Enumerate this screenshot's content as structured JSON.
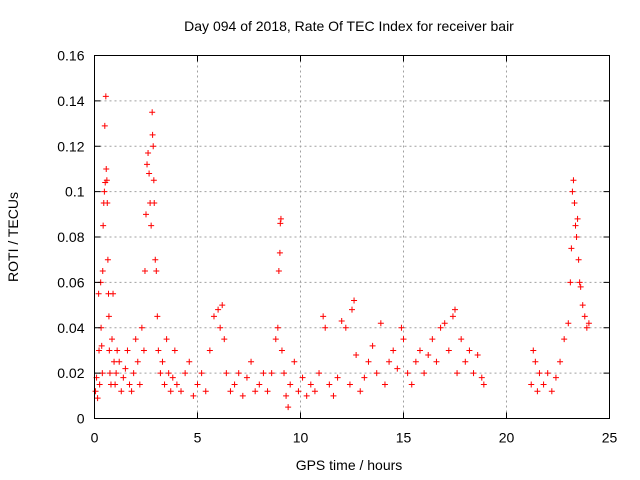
{
  "chart_data": {
    "type": "scatter",
    "title": "Day 094 of 2018, Rate Of TEC Index for receiver bair",
    "xlabel": "GPS time / hours",
    "ylabel": "ROTI / TECUs",
    "xlim": [
      0,
      25
    ],
    "ylim": [
      0,
      0.16
    ],
    "xticks": [
      0,
      5,
      10,
      15,
      20,
      25
    ],
    "xtick_labels": [
      "0",
      "5",
      "10",
      "15",
      "20",
      "25"
    ],
    "yticks": [
      0,
      0.02,
      0.04,
      0.06,
      0.08,
      0.1,
      0.12,
      0.14,
      0.16
    ],
    "ytick_labels": [
      "0",
      "0.02",
      "0.04",
      "0.06",
      "0.08",
      "0.1",
      "0.12",
      "0.14",
      "0.16"
    ],
    "grid": true,
    "marker": "+",
    "color": "#ff0000",
    "series": [
      {
        "points": [
          [
            0.05,
            0.012
          ],
          [
            0.1,
            0.018
          ],
          [
            0.15,
            0.009
          ],
          [
            0.2,
            0.055
          ],
          [
            0.22,
            0.03
          ],
          [
            0.25,
            0.015
          ],
          [
            0.3,
            0.06
          ],
          [
            0.32,
            0.04
          ],
          [
            0.35,
            0.032
          ],
          [
            0.38,
            0.02
          ],
          [
            0.4,
            0.065
          ],
          [
            0.42,
            0.085
          ],
          [
            0.45,
            0.095
          ],
          [
            0.48,
            0.1
          ],
          [
            0.5,
            0.129
          ],
          [
            0.52,
            0.104
          ],
          [
            0.55,
            0.142
          ],
          [
            0.57,
            0.11
          ],
          [
            0.6,
            0.105
          ],
          [
            0.62,
            0.095
          ],
          [
            0.65,
            0.07
          ],
          [
            0.68,
            0.055
          ],
          [
            0.7,
            0.045
          ],
          [
            0.72,
            0.03
          ],
          [
            0.75,
            0.02
          ],
          [
            0.8,
            0.015
          ],
          [
            0.85,
            0.035
          ],
          [
            0.9,
            0.055
          ],
          [
            0.95,
            0.025
          ],
          [
            1.0,
            0.015
          ],
          [
            1.05,
            0.02
          ],
          [
            1.1,
            0.03
          ],
          [
            1.2,
            0.025
          ],
          [
            1.3,
            0.012
          ],
          [
            1.4,
            0.018
          ],
          [
            1.5,
            0.022
          ],
          [
            1.6,
            0.03
          ],
          [
            1.7,
            0.015
          ],
          [
            1.8,
            0.012
          ],
          [
            1.9,
            0.02
          ],
          [
            2.0,
            0.035
          ],
          [
            2.1,
            0.025
          ],
          [
            2.2,
            0.015
          ],
          [
            2.3,
            0.04
          ],
          [
            2.4,
            0.03
          ],
          [
            2.45,
            0.065
          ],
          [
            2.5,
            0.09
          ],
          [
            2.55,
            0.112
          ],
          [
            2.6,
            0.117
          ],
          [
            2.65,
            0.108
          ],
          [
            2.7,
            0.095
          ],
          [
            2.75,
            0.085
          ],
          [
            2.8,
            0.135
          ],
          [
            2.82,
            0.125
          ],
          [
            2.85,
            0.12
          ],
          [
            2.88,
            0.105
          ],
          [
            2.9,
            0.095
          ],
          [
            2.95,
            0.07
          ],
          [
            3.0,
            0.065
          ],
          [
            3.05,
            0.045
          ],
          [
            3.1,
            0.03
          ],
          [
            3.2,
            0.02
          ],
          [
            3.3,
            0.025
          ],
          [
            3.4,
            0.015
          ],
          [
            3.5,
            0.035
          ],
          [
            3.6,
            0.02
          ],
          [
            3.7,
            0.012
          ],
          [
            3.8,
            0.018
          ],
          [
            3.9,
            0.03
          ],
          [
            4.0,
            0.015
          ],
          [
            4.2,
            0.012
          ],
          [
            4.4,
            0.02
          ],
          [
            4.6,
            0.025
          ],
          [
            4.8,
            0.01
          ],
          [
            5.0,
            0.015
          ],
          [
            5.2,
            0.02
          ],
          [
            5.4,
            0.012
          ],
          [
            5.6,
            0.03
          ],
          [
            5.8,
            0.045
          ],
          [
            6.0,
            0.048
          ],
          [
            6.1,
            0.04
          ],
          [
            6.2,
            0.05
          ],
          [
            6.3,
            0.035
          ],
          [
            6.4,
            0.02
          ],
          [
            6.6,
            0.012
          ],
          [
            6.8,
            0.015
          ],
          [
            7.0,
            0.02
          ],
          [
            7.2,
            0.01
          ],
          [
            7.4,
            0.018
          ],
          [
            7.6,
            0.025
          ],
          [
            7.8,
            0.012
          ],
          [
            8.0,
            0.015
          ],
          [
            8.2,
            0.02
          ],
          [
            8.4,
            0.012
          ],
          [
            8.6,
            0.02
          ],
          [
            8.8,
            0.035
          ],
          [
            8.9,
            0.04
          ],
          [
            8.95,
            0.065
          ],
          [
            9.0,
            0.073
          ],
          [
            9.02,
            0.086
          ],
          [
            9.05,
            0.088
          ],
          [
            9.1,
            0.03
          ],
          [
            9.2,
            0.02
          ],
          [
            9.3,
            0.01
          ],
          [
            9.4,
            0.005
          ],
          [
            9.5,
            0.015
          ],
          [
            9.7,
            0.025
          ],
          [
            9.9,
            0.012
          ],
          [
            10.1,
            0.018
          ],
          [
            10.3,
            0.01
          ],
          [
            10.5,
            0.015
          ],
          [
            10.7,
            0.012
          ],
          [
            10.9,
            0.02
          ],
          [
            11.1,
            0.045
          ],
          [
            11.2,
            0.04
          ],
          [
            11.4,
            0.015
          ],
          [
            11.6,
            0.01
          ],
          [
            11.8,
            0.018
          ],
          [
            12.0,
            0.043
          ],
          [
            12.2,
            0.04
          ],
          [
            12.4,
            0.015
          ],
          [
            12.5,
            0.048
          ],
          [
            12.6,
            0.052
          ],
          [
            12.7,
            0.028
          ],
          [
            12.9,
            0.012
          ],
          [
            13.1,
            0.018
          ],
          [
            13.3,
            0.025
          ],
          [
            13.5,
            0.032
          ],
          [
            13.7,
            0.02
          ],
          [
            13.9,
            0.042
          ],
          [
            14.1,
            0.015
          ],
          [
            14.3,
            0.025
          ],
          [
            14.5,
            0.03
          ],
          [
            14.7,
            0.022
          ],
          [
            14.9,
            0.04
          ],
          [
            15.0,
            0.035
          ],
          [
            15.2,
            0.02
          ],
          [
            15.4,
            0.015
          ],
          [
            15.6,
            0.025
          ],
          [
            15.8,
            0.03
          ],
          [
            16.0,
            0.02
          ],
          [
            16.2,
            0.028
          ],
          [
            16.4,
            0.035
          ],
          [
            16.6,
            0.025
          ],
          [
            16.8,
            0.04
          ],
          [
            17.0,
            0.042
          ],
          [
            17.2,
            0.03
          ],
          [
            17.4,
            0.045
          ],
          [
            17.5,
            0.048
          ],
          [
            17.6,
            0.02
          ],
          [
            17.8,
            0.035
          ],
          [
            18.0,
            0.025
          ],
          [
            18.2,
            0.03
          ],
          [
            18.4,
            0.02
          ],
          [
            18.6,
            0.028
          ],
          [
            18.8,
            0.018
          ],
          [
            18.9,
            0.015
          ],
          [
            21.2,
            0.015
          ],
          [
            21.3,
            0.03
          ],
          [
            21.4,
            0.025
          ],
          [
            21.5,
            0.012
          ],
          [
            21.6,
            0.02
          ],
          [
            21.8,
            0.015
          ],
          [
            22.0,
            0.02
          ],
          [
            22.2,
            0.012
          ],
          [
            22.4,
            0.018
          ],
          [
            22.6,
            0.025
          ],
          [
            22.8,
            0.035
          ],
          [
            23.0,
            0.042
          ],
          [
            23.1,
            0.06
          ],
          [
            23.15,
            0.075
          ],
          [
            23.2,
            0.1
          ],
          [
            23.25,
            0.105
          ],
          [
            23.3,
            0.095
          ],
          [
            23.35,
            0.085
          ],
          [
            23.4,
            0.08
          ],
          [
            23.45,
            0.088
          ],
          [
            23.5,
            0.07
          ],
          [
            23.55,
            0.06
          ],
          [
            23.6,
            0.058
          ],
          [
            23.7,
            0.05
          ],
          [
            23.8,
            0.045
          ],
          [
            23.9,
            0.04
          ],
          [
            24.0,
            0.042
          ]
        ]
      }
    ]
  }
}
